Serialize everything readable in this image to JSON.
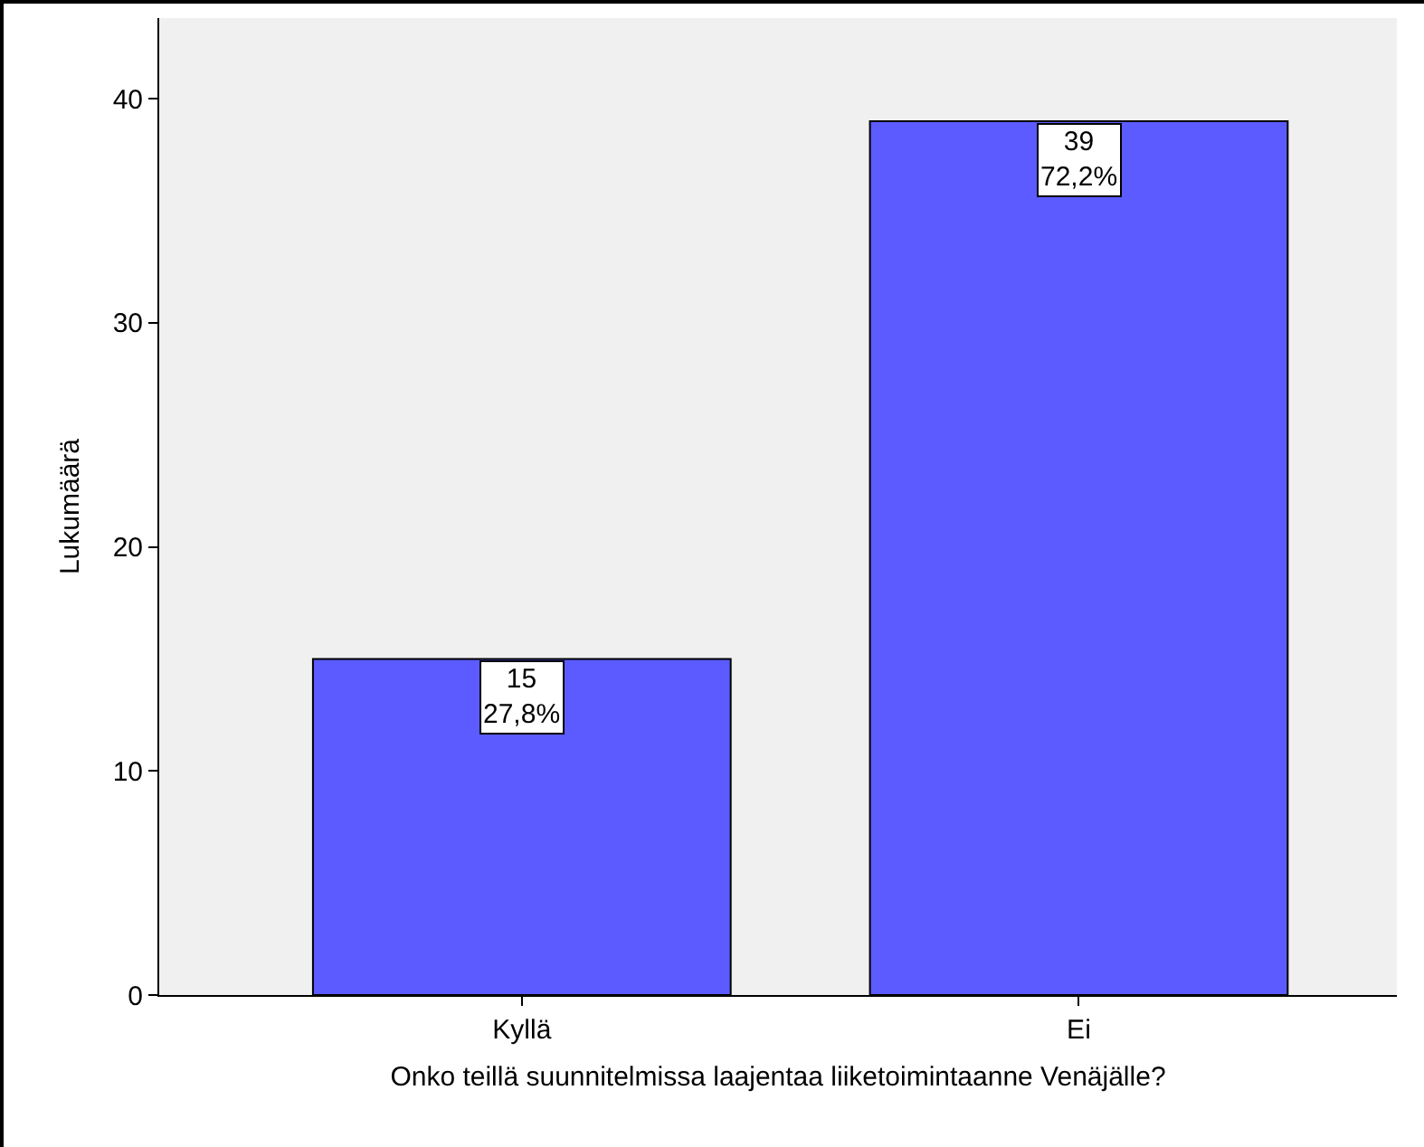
{
  "chart_data": {
    "type": "bar",
    "xlabel": "Onko teillä suunnitelmissa laajentaa liiketoimintaanne Venäjälle?",
    "ylabel": "Lukumäärä",
    "categories": [
      "Kyllä",
      "Ei"
    ],
    "values": [
      15,
      39
    ],
    "color": "#5b5bff",
    "value_labels": [
      "15\n27,8%",
      "39\n72,2%"
    ],
    "ylim": [
      0,
      43.6
    ],
    "yticks": [
      0,
      10,
      20,
      30,
      40
    ],
    "grid": false
  }
}
